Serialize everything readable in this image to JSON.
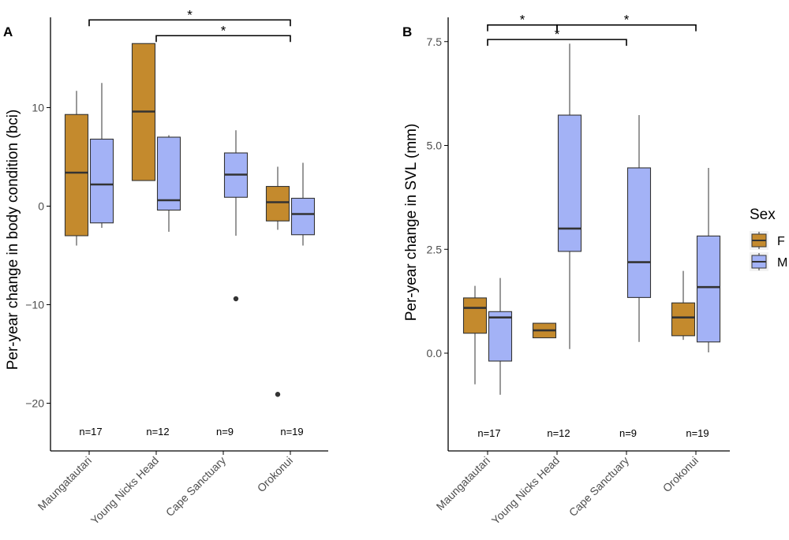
{
  "chart_data": [
    {
      "type": "boxplot",
      "panel_label": "A",
      "ylabel": "Per-year change in body condition (bci)",
      "xlabel": "",
      "ylim": [
        -25,
        18
      ],
      "yticks": [
        -20,
        -10,
        0,
        10
      ],
      "ytick_labels": [
        "−20",
        "−10",
        "0",
        "10"
      ],
      "grid": false,
      "categories": [
        "Maungatautari",
        "Young Nicks Head",
        "Cape Sanctuary",
        "Orokonui"
      ],
      "sample_sizes": [
        "n=17",
        "n=12",
        "n=9",
        "n=19"
      ],
      "series": [
        {
          "name": "F",
          "boxes": [
            {
              "category": "Maungatautari",
              "whisker_low": -4.0,
              "q1": -3.0,
              "median": 3.4,
              "q3": 9.3,
              "whisker_high": 11.7,
              "outliers": []
            },
            {
              "category": "Young Nicks Head",
              "whisker_low": 2.6,
              "q1": 2.6,
              "median": 9.6,
              "q3": 16.5,
              "whisker_high": 16.5,
              "outliers": []
            },
            {
              "category": "Orokonui",
              "whisker_low": -2.4,
              "q1": -1.5,
              "median": 0.4,
              "q3": 2.0,
              "whisker_high": 4.0,
              "outliers": [
                -19.1
              ]
            }
          ]
        },
        {
          "name": "M",
          "boxes": [
            {
              "category": "Maungatautari",
              "whisker_low": -2.2,
              "q1": -1.7,
              "median": 2.2,
              "q3": 6.8,
              "whisker_high": 12.5,
              "outliers": []
            },
            {
              "category": "Young Nicks Head",
              "whisker_low": -2.6,
              "q1": -0.4,
              "median": 0.6,
              "q3": 7.0,
              "whisker_high": 7.2,
              "outliers": []
            },
            {
              "category": "Cape Sanctuary",
              "whisker_low": -3.0,
              "q1": 0.9,
              "median": 3.2,
              "q3": 5.4,
              "whisker_high": 7.7,
              "outliers": [
                -9.4
              ]
            },
            {
              "category": "Orokonui",
              "whisker_low": -4.0,
              "q1": -2.9,
              "median": -0.8,
              "q3": 0.8,
              "whisker_high": 4.4,
              "outliers": []
            }
          ]
        }
      ],
      "significance": [
        {
          "from": "Maungatautari",
          "to": "Orokonui",
          "label": "*",
          "y": 18.9
        },
        {
          "from": "Young Nicks Head",
          "to": "Orokonui",
          "label": "*",
          "y": 17.3
        }
      ]
    },
    {
      "type": "boxplot",
      "panel_label": "B",
      "ylabel": "Per-year change in SVL (mm)",
      "xlabel": "",
      "ylim": [
        -2.3,
        7.8
      ],
      "yticks": [
        0.0,
        2.5,
        5.0,
        7.5
      ],
      "ytick_labels": [
        "0.0",
        "2.5",
        "5.0",
        "7.5"
      ],
      "grid": false,
      "categories": [
        "Maungatautari",
        "Young Nicks Head",
        "Cape Sanctuary",
        "Orokonui"
      ],
      "sample_sizes": [
        "n=17",
        "n=12",
        "n=9",
        "n=19"
      ],
      "series": [
        {
          "name": "F",
          "boxes": [
            {
              "category": "Maungatautari",
              "whisker_low": -0.75,
              "q1": 0.48,
              "median": 1.09,
              "q3": 1.33,
              "whisker_high": 1.62,
              "outliers": []
            },
            {
              "category": "Young Nicks Head",
              "whisker_low": 0.37,
              "q1": 0.37,
              "median": 0.55,
              "q3": 0.72,
              "whisker_high": 0.72,
              "outliers": []
            },
            {
              "category": "Orokonui",
              "whisker_low": 0.32,
              "q1": 0.42,
              "median": 0.86,
              "q3": 1.21,
              "whisker_high": 1.98,
              "outliers": []
            }
          ]
        },
        {
          "name": "M",
          "boxes": [
            {
              "category": "Maungatautari",
              "whisker_low": -1.0,
              "q1": -0.19,
              "median": 0.86,
              "q3": 1.0,
              "whisker_high": 1.81,
              "outliers": []
            },
            {
              "category": "Young Nicks Head",
              "whisker_low": 0.1,
              "q1": 2.45,
              "median": 3.0,
              "q3": 5.73,
              "whisker_high": 7.45,
              "outliers": []
            },
            {
              "category": "Cape Sanctuary",
              "whisker_low": 0.27,
              "q1": 1.34,
              "median": 2.19,
              "q3": 4.46,
              "whisker_high": 5.73,
              "outliers": []
            },
            {
              "category": "Orokonui",
              "whisker_low": 0.02,
              "q1": 0.27,
              "median": 1.59,
              "q3": 2.82,
              "whisker_high": 4.46,
              "outliers": []
            }
          ]
        }
      ],
      "significance": [
        {
          "from": "Maungatautari",
          "to": "Young Nicks Head",
          "label": "*",
          "y": 7.9
        },
        {
          "from": "Young Nicks Head",
          "to": "Orokonui",
          "label": "*",
          "y": 7.9
        },
        {
          "from": "Maungatautari",
          "to": "Cape Sanctuary",
          "label": "*",
          "y": 7.55
        }
      ]
    }
  ],
  "legend": {
    "title": "Sex",
    "placement": "right",
    "items": [
      {
        "label": "F",
        "color": "#c48a2d"
      },
      {
        "label": "M",
        "color": "#a3b2f6"
      }
    ]
  },
  "colors": {
    "F": "#c48a2d",
    "M": "#a3b2f6",
    "line": "#333333",
    "axis": "#000000",
    "text": "#4d4d4d"
  }
}
